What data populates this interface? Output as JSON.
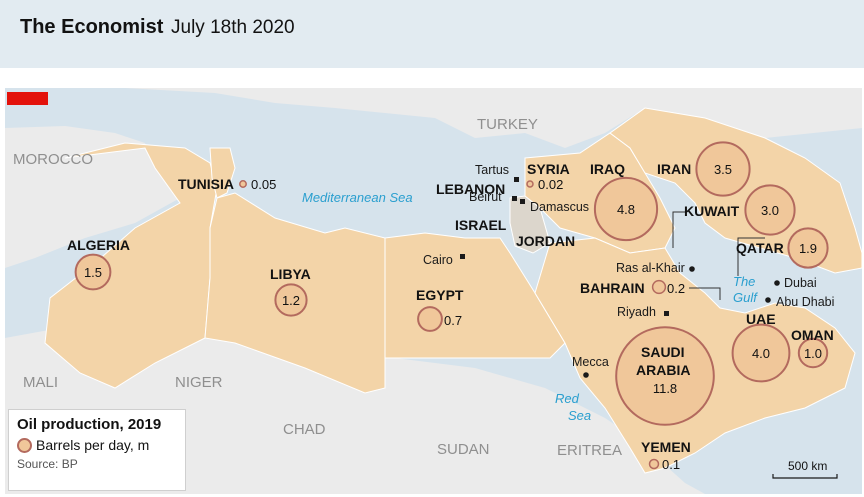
{
  "header": {
    "brand": "The Economist",
    "date": "July 18th 2020"
  },
  "legend": {
    "title": "Oil production, 2019",
    "unit": "Barrels per day, m",
    "source": "Source: BP"
  },
  "scale": "500 km",
  "colors": {
    "land_highlight": "#f3d4a8",
    "land_other": "#ebebeb",
    "sea": "#d6e3ec",
    "bubble_fill": "#f0c79a",
    "bubble_stroke": "#b36a5e",
    "sea_text": "#2a9fcf",
    "accent": "#e3120b"
  },
  "regions_other": [
    "TURKEY",
    "MOROCCO",
    "MALI",
    "NIGER",
    "CHAD",
    "SUDAN",
    "ERITREA"
  ],
  "seas": [
    "Mediterranean Sea",
    "Red",
    "Sea",
    "The",
    "Gulf"
  ],
  "cities": [
    "Tartus",
    "Beirut",
    "Damascus",
    "Cairo",
    "Ras al-Khair",
    "Riyadh",
    "Mecca",
    "Dubai",
    "Abu Dhabi"
  ],
  "countries": [
    {
      "name": "ALGERIA",
      "value": "1.5",
      "number": 1.5
    },
    {
      "name": "TUNISIA",
      "value": "0.05",
      "number": 0.05
    },
    {
      "name": "LIBYA",
      "value": "1.2",
      "number": 1.2
    },
    {
      "name": "EGYPT",
      "value": "0.7",
      "number": 0.7
    },
    {
      "name": "LEBANON",
      "value": "",
      "number": null
    },
    {
      "name": "ISRAEL",
      "value": "",
      "number": null
    },
    {
      "name": "JORDAN",
      "value": "",
      "number": null
    },
    {
      "name": "SYRIA",
      "value": "0.02",
      "number": 0.02
    },
    {
      "name": "IRAQ",
      "value": "4.8",
      "number": 4.8
    },
    {
      "name": "IRAN",
      "value": "3.5",
      "number": 3.5
    },
    {
      "name": "KUWAIT",
      "value": "3.0",
      "number": 3.0
    },
    {
      "name": "QATAR",
      "value": "1.9",
      "number": 1.9
    },
    {
      "name": "BAHRAIN",
      "value": "0.2",
      "number": 0.2
    },
    {
      "name": "UAE",
      "value": "4.0",
      "number": 4.0
    },
    {
      "name": "OMAN",
      "value": "1.0",
      "number": 1.0
    },
    {
      "name": "SAUDI",
      "value": "",
      "number": null
    },
    {
      "name": "ARABIA",
      "value": "11.8",
      "number": 11.8
    },
    {
      "name": "YEMEN",
      "value": "0.1",
      "number": 0.1
    }
  ]
}
